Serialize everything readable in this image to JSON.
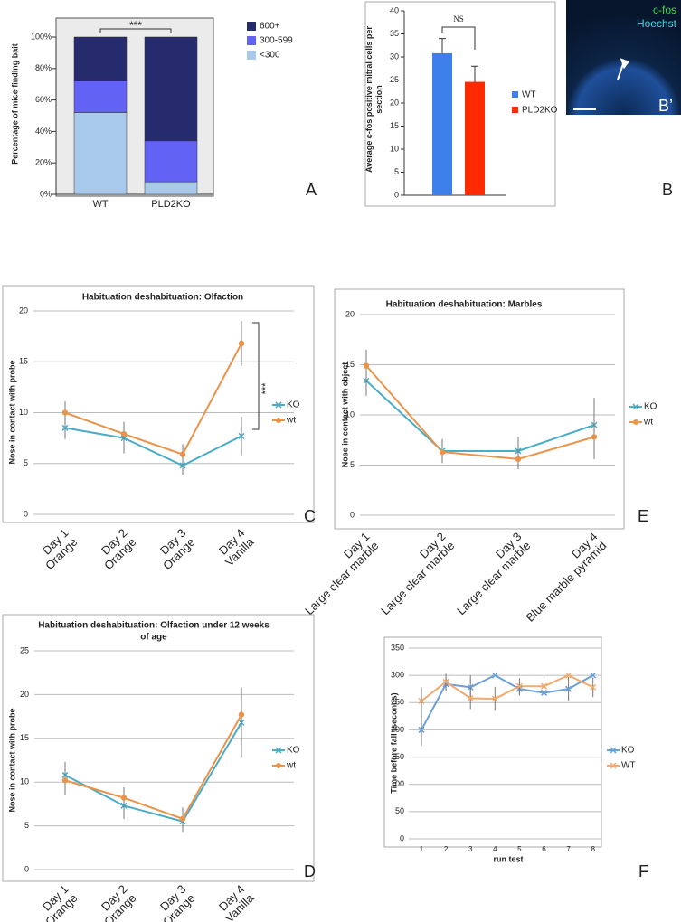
{
  "chart_data": [
    {
      "type": "stacked_bar",
      "panel_label": "A",
      "ylabel": "Percentage of mice finding bait",
      "annotation": "***",
      "categories": [
        "WT",
        "PLD2KO"
      ],
      "series": [
        {
          "name": "<300",
          "color": "#a9c9ea",
          "values": [
            52,
            8
          ]
        },
        {
          "name": "300-599",
          "color": "#6262f4",
          "values": [
            20,
            26
          ]
        },
        {
          "name": "600+",
          "color": "#262b6e",
          "values": [
            28,
            66
          ]
        }
      ],
      "ylim": [
        0,
        100
      ],
      "yticks": [
        {
          "value": 0,
          "label": "0%"
        },
        {
          "value": 20,
          "label": "20%"
        },
        {
          "value": 40,
          "label": "40%"
        },
        {
          "value": 60,
          "label": "60%"
        },
        {
          "value": 80,
          "label": "80%"
        },
        {
          "value": 100,
          "label": "100%"
        }
      ]
    },
    {
      "type": "bar",
      "panel_label": "B",
      "ylabel": [
        "Average c-fos positive mitral cells per",
        "section"
      ],
      "annotation": "NS",
      "categories": [
        "WT",
        "PLD2KO"
      ],
      "values": [
        30.8,
        24.6
      ],
      "errors": [
        3.2,
        3.4
      ],
      "colors": [
        "#3d80ec",
        "#ff2a00"
      ],
      "ylim": [
        0,
        40
      ],
      "yticks": [
        0,
        5,
        10,
        15,
        20,
        25,
        30,
        35,
        40
      ]
    },
    {
      "type": "line",
      "panel_label": "C",
      "title": "Habituation deshabituation: Olfaction",
      "ylabel": "Nose in contact with probe",
      "annotation": "***",
      "grid": true,
      "categories": [
        [
          "Day 1",
          "Orange"
        ],
        [
          "Day 2",
          "Orange"
        ],
        [
          "Day 3",
          "Orange"
        ],
        [
          "Day 4",
          "Vanilla"
        ]
      ],
      "series": [
        {
          "name": "KO",
          "color": "#4bacc6",
          "marker": "x",
          "values": [
            8.5,
            7.5,
            4.8,
            7.7
          ],
          "errors": [
            1.1,
            1.5,
            0.9,
            1.9
          ]
        },
        {
          "name": "wt",
          "color": "#e9944a",
          "marker": "circle",
          "values": [
            10.0,
            7.9,
            5.9,
            16.8
          ],
          "errors": [
            1.1,
            1.2,
            1.0,
            2.2
          ]
        }
      ],
      "ylim": [
        0,
        20
      ],
      "yticks": [
        0,
        5,
        10,
        15,
        20
      ]
    },
    {
      "type": "line",
      "panel_label": "E",
      "title": "Habituation deshabituation: Marbles",
      "ylabel": "Nose in contact with object",
      "grid": true,
      "categories": [
        [
          "Day 1",
          "Large clear marble"
        ],
        [
          "Day 2",
          "Large clear marble"
        ],
        [
          "Day 3",
          "Large clear marble"
        ],
        [
          "Day 4",
          "Blue marble pyramid"
        ]
      ],
      "series": [
        {
          "name": "KO",
          "color": "#4bacc6",
          "marker": "x",
          "values": [
            13.4,
            6.4,
            6.4,
            9.0
          ],
          "errors": [
            1.5,
            1.2,
            1.4,
            2.7
          ]
        },
        {
          "name": "wt",
          "color": "#e9944a",
          "marker": "circle",
          "values": [
            14.9,
            6.3,
            5.6,
            7.8
          ],
          "errors": [
            1.6,
            1.1,
            1.0,
            2.2
          ]
        }
      ],
      "ylim": [
        0,
        20
      ],
      "yticks": [
        0,
        5,
        10,
        15,
        20
      ]
    },
    {
      "type": "line",
      "panel_label": "D",
      "title": [
        "Habituation deshabituation: Olfaction under 12 weeks",
        "of age"
      ],
      "ylabel": "Nose in contact with probe",
      "grid": true,
      "categories": [
        [
          "Day 1",
          "Orange"
        ],
        [
          "Day 2",
          "Orange"
        ],
        [
          "Day 3",
          "Orange"
        ],
        [
          "Day 4",
          "Vanilla"
        ]
      ],
      "series": [
        {
          "name": "KO",
          "color": "#4bacc6",
          "marker": "x",
          "values": [
            10.8,
            7.3,
            5.5,
            16.8
          ],
          "errors": [
            1.5,
            1.5,
            1.2,
            4.0
          ]
        },
        {
          "name": "wt",
          "color": "#e9944a",
          "marker": "circle",
          "values": [
            10.2,
            8.2,
            5.8,
            17.7
          ],
          "errors": [
            1.7,
            1.2,
            1.3,
            3.0
          ]
        }
      ],
      "ylim": [
        0,
        25
      ],
      "yticks": [
        0,
        5,
        10,
        15,
        20,
        25
      ]
    },
    {
      "type": "line",
      "panel_label": "F",
      "ylabel": "Time before fall (seconds)",
      "xlabel": "run test",
      "grid": true,
      "categories": [
        "1",
        "2",
        "3",
        "4",
        "5",
        "6",
        "7",
        "8"
      ],
      "series": [
        {
          "name": "KO",
          "color": "#6a9fd8",
          "marker": "x",
          "values": [
            200,
            284,
            278,
            300,
            275,
            268,
            275,
            300
          ],
          "errors": [
            30,
            12,
            22,
            0,
            12,
            15,
            22,
            0
          ]
        },
        {
          "name": "WT",
          "color": "#f2aa6e",
          "marker": "x",
          "values": [
            253,
            288,
            258,
            257,
            280,
            280,
            300,
            278
          ],
          "errors": [
            25,
            15,
            20,
            22,
            15,
            15,
            0,
            18
          ]
        }
      ],
      "ylim": [
        0,
        350
      ],
      "yticks": [
        0,
        50,
        100,
        150,
        200,
        250,
        300,
        350
      ]
    }
  ],
  "micrograph": {
    "label_1": "c-fos",
    "label_2": "Hoechst",
    "panel_label": "B’"
  }
}
